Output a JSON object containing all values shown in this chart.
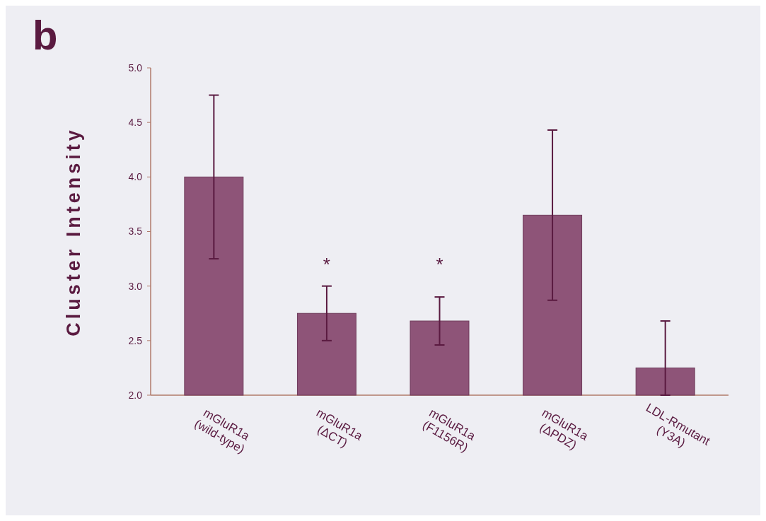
{
  "chart_data": {
    "type": "bar",
    "ylabel": "Cluster Intensity",
    "categories": [
      "mGluR1a\n(wild-type)",
      "mGluR1a\n(ΔCT)",
      "mGluR1a\n(F1156R)",
      "mGluR1a\n(ΔPDZ)",
      "LDL-Rmutant\n(Y3A)"
    ],
    "values": [
      4.0,
      2.75,
      2.68,
      3.65,
      2.25
    ],
    "errors": [
      0.75,
      0.25,
      0.22,
      0.78,
      [
        2.0,
        2.68
      ]
    ],
    "color": "#8e5478",
    "ylim": [
      2.0,
      5.0
    ],
    "yticks": [
      {
        "value": 2.0,
        "label": "2.0"
      },
      {
        "value": 2.5,
        "label": "2.5"
      },
      {
        "value": 3.0,
        "label": "3.0"
      },
      {
        "value": 3.5,
        "label": "3.5"
      },
      {
        "value": 4.0,
        "label": "4.0"
      },
      {
        "value": 4.5,
        "label": "4.5"
      },
      {
        "value": 5.0,
        "label": "5.0"
      }
    ],
    "annotations": [
      "b",
      "*",
      "*"
    ]
  }
}
